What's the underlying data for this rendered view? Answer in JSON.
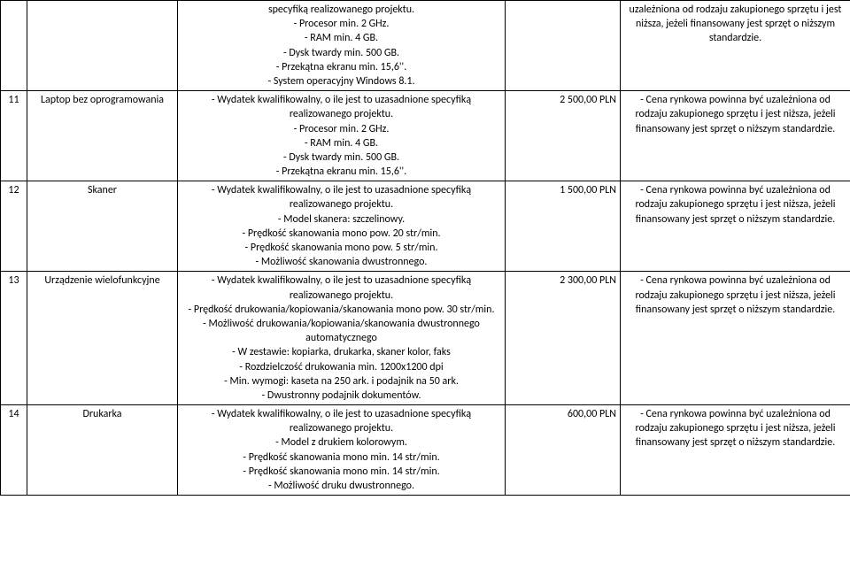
{
  "rows": [
    {
      "num": "",
      "name": "",
      "desc": "specyfiką realizowanego projektu.\n- Procesor min. 2 GHz.\n- RAM min. 4 GB.\n- Dysk twardy min. 500 GB.\n- Przekątna ekranu min. 15,6''.\n- System operacyjny Windows 8.1.",
      "price": "",
      "notes": "uzależniona od rodzaju zakupionego sprzętu i jest niższa, jeżeli finansowany jest sprzęt o niższym standardzie."
    },
    {
      "num": "11",
      "name": "Laptop bez oprogramowania",
      "desc": "- Wydatek kwalifikowalny, o ile jest to uzasadnione specyfiką realizowanego projektu.\n- Procesor min. 2 GHz.\n- RAM min. 4 GB.\n- Dysk twardy min. 500 GB.\n- Przekątna ekranu min. 15,6''.",
      "price": "2 500,00 PLN",
      "notes": "- Cena rynkowa powinna być uzależniona od rodzaju zakupionego sprzętu i jest niższa, jeżeli finansowany jest sprzęt o niższym standardzie."
    },
    {
      "num": "12",
      "name": "Skaner",
      "desc": "- Wydatek kwalifikowalny, o ile jest to uzasadnione specyfiką realizowanego projektu.\n- Model skanera: szczelinowy.\n- Prędkość skanowania mono pow. 20 str/min.\n- Prędkość skanowania mono pow. 5 str/min.\n- Możliwość skanowania dwustronnego.",
      "price": "1 500,00 PLN",
      "notes": "- Cena rynkowa powinna być uzależniona od rodzaju zakupionego sprzętu i jest niższa, jeżeli finansowany jest sprzęt o niższym standardzie."
    },
    {
      "num": "13",
      "name": "Urządzenie wielofunkcyjne",
      "desc": "- Wydatek kwalifikowalny, o ile jest to uzasadnione specyfiką realizowanego projektu.\n- Prędkość drukowania/kopiowania/skanowania mono pow. 30 str/min.\n- Możliwość drukowania/kopiowania/skanowania dwustronnego automatycznego\n- W zestawie: kopiarka, drukarka, skaner kolor, faks\n- Rozdzielczość drukowania min. 1200x1200 dpi\n- Min. wymogi: kaseta na 250 ark. i podajnik na 50 ark.\n- Dwustronny podajnik dokumentów.",
      "price": "2 300,00 PLN",
      "notes": "- Cena rynkowa powinna być uzależniona od rodzaju zakupionego sprzętu i jest niższa, jeżeli finansowany jest sprzęt o niższym standardzie."
    },
    {
      "num": "14",
      "name": "Drukarka",
      "desc": "- Wydatek kwalifikowalny, o ile jest to uzasadnione specyfiką realizowanego projektu.\n- Model z drukiem kolorowym.\n- Prędkość skanowania mono min. 14 str/min.\n- Prędkość skanowania mono min. 14 str/min.\n- Możliwość druku dwustronnego.",
      "price": "600,00 PLN",
      "notes": "- Cena rynkowa powinna być uzależniona od rodzaju zakupionego sprzętu i jest niższa, jeżeli finansowany jest sprzęt o niższym standardzie."
    }
  ]
}
